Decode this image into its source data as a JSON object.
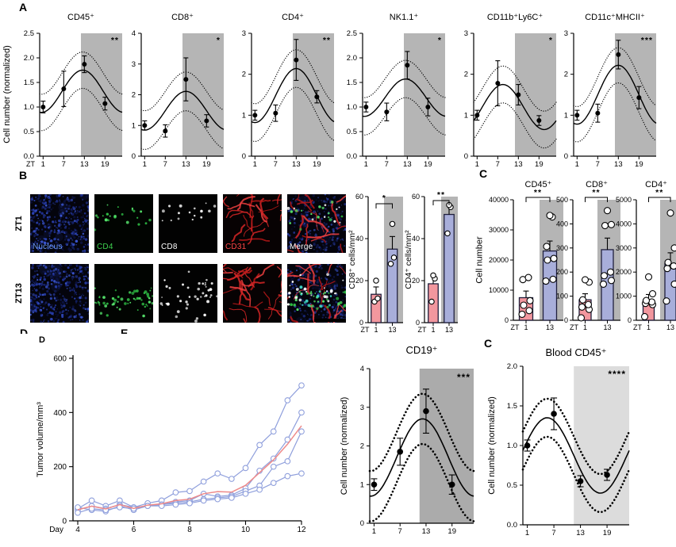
{
  "colors": {
    "bar_pink": "#f2979e",
    "bar_blue": "#a8aeda",
    "bar_border": "#20203d",
    "shade": "#b5b5b5",
    "growth_blue": "#8f9fdc",
    "growth_red": "#ee8a8a",
    "point_fill": "#ffffff",
    "axis": "#000000"
  },
  "labels": {
    "panel_a": "A",
    "panel_b": "B",
    "panel_c": "C",
    "panel_c2": "C",
    "panel_d_small": "D",
    "clipped_d": "D",
    "clipped_e": "E"
  },
  "panel_a": {
    "ylabel": "Cell number (normalized)",
    "x_prefix": "ZT"
  },
  "panel_b": {
    "row_labels": [
      "ZT1",
      "ZT13"
    ],
    "channels": [
      {
        "label": "Nucleus",
        "color": "#6f9fff",
        "kind": "nucleus",
        "counts": [
          420,
          420
        ]
      },
      {
        "label": "CD4",
        "color": "#3ed24f",
        "kind": "cd4",
        "counts": [
          22,
          60
        ]
      },
      {
        "label": "CD8",
        "color": "#ffffff",
        "kind": "cd8",
        "counts": [
          16,
          42
        ]
      },
      {
        "label": "CD31",
        "color": "#ff4747",
        "kind": "cd31",
        "counts": [
          26,
          30
        ]
      },
      {
        "label": "Merge",
        "color": "#ffffff",
        "kind": "merge",
        "counts": [
          1,
          1
        ]
      }
    ]
  },
  "panel_c": {
    "ylabel": "Cell number",
    "x_prefix": "ZT"
  },
  "chart_data": [
    {
      "id": "a-cd45",
      "panel": "A",
      "type": "line",
      "subtype": "cosinor-fit",
      "title": "CD45⁺",
      "sig": "**",
      "xlim": [
        0,
        24
      ],
      "xticks": [
        1,
        7,
        13,
        19
      ],
      "ylim": [
        0,
        2.5
      ],
      "yticks": [
        0,
        0.5,
        1,
        1.5,
        2,
        2.5
      ],
      "ytick_labels": [
        "0.0",
        "0.5",
        "1.0",
        "1.5",
        "2.0",
        "2.5"
      ],
      "shade": [
        12,
        24
      ],
      "shade_color": "#b5b5b5",
      "x": [
        1,
        7,
        13,
        19
      ],
      "y": [
        1.0,
        1.37,
        1.87,
        1.07
      ],
      "err": [
        0.12,
        0.36,
        0.17,
        0.13
      ],
      "fit": {
        "mesor": 1.32,
        "amp": 0.43,
        "peak": 12.5,
        "band": 0.37
      }
    },
    {
      "id": "a-cd8",
      "panel": "A",
      "type": "line",
      "subtype": "cosinor-fit",
      "title": "CD8⁺",
      "sig": "*",
      "xlim": [
        0,
        24
      ],
      "xticks": [
        1,
        7,
        13,
        19
      ],
      "ylim": [
        0,
        4
      ],
      "yticks": [
        0,
        1,
        2,
        3,
        4
      ],
      "ytick_labels": [
        "0",
        "1",
        "2",
        "3",
        "4"
      ],
      "shade": [
        12,
        24
      ],
      "shade_color": "#b5b5b5",
      "x": [
        1,
        7,
        13,
        19
      ],
      "y": [
        1.0,
        0.82,
        2.5,
        1.15
      ],
      "err": [
        0.15,
        0.2,
        0.7,
        0.2
      ],
      "fit": {
        "mesor": 1.48,
        "amp": 0.63,
        "peak": 13,
        "band": 0.63
      }
    },
    {
      "id": "a-cd4",
      "panel": "A",
      "type": "line",
      "subtype": "cosinor-fit",
      "title": "CD4⁺",
      "sig": "**",
      "xlim": [
        0,
        24
      ],
      "xticks": [
        1,
        7,
        13,
        19
      ],
      "ylim": [
        0,
        3
      ],
      "yticks": [
        0,
        1,
        2,
        3
      ],
      "ytick_labels": [
        "0",
        "1",
        "2",
        "3"
      ],
      "shade": [
        12,
        24
      ],
      "shade_color": "#b5b5b5",
      "x": [
        1,
        7,
        13,
        19
      ],
      "y": [
        1.0,
        1.05,
        2.35,
        1.45
      ],
      "err": [
        0.12,
        0.2,
        0.5,
        0.15
      ],
      "fit": {
        "mesor": 1.48,
        "amp": 0.66,
        "peak": 13,
        "band": 0.46
      }
    },
    {
      "id": "a-nk11",
      "panel": "A",
      "type": "line",
      "subtype": "cosinor-fit",
      "title": "NK1.1⁺",
      "sig": "*",
      "xlim": [
        0,
        24
      ],
      "xticks": [
        1,
        7,
        13,
        19
      ],
      "ylim": [
        0,
        2.5
      ],
      "yticks": [
        0,
        0.5,
        1,
        1.5,
        2,
        2.5
      ],
      "ytick_labels": [
        "0.0",
        "0.5",
        "1.0",
        "1.5",
        "2.0",
        "2.5"
      ],
      "shade": [
        12,
        24
      ],
      "shade_color": "#b5b5b5",
      "x": [
        1,
        7,
        13,
        19
      ],
      "y": [
        1.0,
        0.9,
        1.85,
        1.0
      ],
      "err": [
        0.1,
        0.18,
        0.28,
        0.18
      ],
      "fit": {
        "mesor": 1.19,
        "amp": 0.38,
        "peak": 12.5,
        "band": 0.38
      }
    },
    {
      "id": "a-cd11b",
      "panel": "A",
      "type": "line",
      "subtype": "cosinor-fit",
      "title": "CD11b⁺Ly6C⁺",
      "sig": "*",
      "xlim": [
        0,
        24
      ],
      "xticks": [
        1,
        7,
        13,
        19
      ],
      "ylim": [
        0,
        3
      ],
      "yticks": [
        0,
        1,
        2,
        3
      ],
      "ytick_labels": [
        "0",
        "1",
        "2",
        "3"
      ],
      "shade": [
        12,
        24
      ],
      "shade_color": "#b5b5b5",
      "x": [
        1,
        7,
        13,
        19
      ],
      "y": [
        1.0,
        1.78,
        1.5,
        0.87
      ],
      "err": [
        0.12,
        0.55,
        0.25,
        0.12
      ],
      "fit": {
        "mesor": 1.2,
        "amp": 0.55,
        "peak": 8.5,
        "band": 0.45
      }
    },
    {
      "id": "a-cd11c",
      "panel": "A",
      "type": "line",
      "subtype": "cosinor-fit",
      "title": "CD11c⁺MHCII⁺",
      "sig": "***",
      "xlim": [
        0,
        24
      ],
      "xticks": [
        1,
        7,
        13,
        19
      ],
      "ylim": [
        0,
        3
      ],
      "yticks": [
        0,
        1,
        2,
        3
      ],
      "ytick_labels": [
        "0",
        "1",
        "2",
        "3"
      ],
      "shade": [
        12,
        24
      ],
      "shade_color": "#b5b5b5",
      "x": [
        1,
        7,
        13,
        19
      ],
      "y": [
        1.0,
        1.05,
        2.48,
        1.43
      ],
      "err": [
        0.12,
        0.22,
        0.35,
        0.27
      ],
      "fit": {
        "mesor": 1.5,
        "amp": 0.72,
        "peak": 13,
        "band": 0.43
      }
    },
    {
      "id": "b-cd8",
      "panel": "B",
      "type": "bar",
      "ylabel": "CD8⁺ cells/mm²",
      "sig": "*",
      "x_prefix": "ZT",
      "categories": [
        "1",
        "13"
      ],
      "ylim": [
        0,
        60
      ],
      "yticks": [
        0,
        20,
        40,
        60
      ],
      "ytick_labels": [
        "0",
        "20",
        "40",
        "60"
      ],
      "values": [
        13.5,
        35
      ],
      "errors": [
        3.5,
        6
      ],
      "points": [
        [
          10,
          11.5,
          20
        ],
        [
          28,
          31,
          47
        ]
      ],
      "shade_color": "#b5b5b5"
    },
    {
      "id": "b-cd4",
      "panel": "B",
      "type": "bar",
      "ylabel": "CD4⁺ cells/mm²",
      "sig": "**",
      "x_prefix": "ZT",
      "categories": [
        "1",
        "13"
      ],
      "ylim": [
        0,
        60
      ],
      "yticks": [
        0,
        20,
        40,
        60
      ],
      "ytick_labels": [
        "0",
        "20",
        "40",
        "60"
      ],
      "values": [
        18.5,
        51.5
      ],
      "errors": [
        4.5,
        4.5
      ],
      "points": [
        [
          10,
          21,
          22.5
        ],
        [
          42.5,
          55,
          56
        ]
      ],
      "shade_color": "#b5b5b5"
    },
    {
      "id": "c-cd45",
      "panel": "C",
      "type": "bar",
      "title": "CD45⁺",
      "sig": "**",
      "x_prefix": "ZT",
      "categories": [
        "1",
        "13"
      ],
      "ylim": [
        0,
        40000
      ],
      "yticks": [
        0,
        10000,
        20000,
        30000,
        40000
      ],
      "ytick_labels": [
        "0",
        "10000",
        "20000",
        "30000",
        "40000"
      ],
      "values": [
        7500,
        23000
      ],
      "errors": [
        2200,
        3300
      ],
      "points": [
        [
          2000,
          3200,
          5000,
          6500,
          13500,
          14200
        ],
        [
          13000,
          13600,
          20000,
          20500,
          24500,
          34300,
          34800
        ]
      ],
      "shade_color": "#b5b5b5"
    },
    {
      "id": "c-cd8",
      "panel": "C",
      "type": "bar",
      "title": "CD8⁺",
      "sig": "**",
      "x_prefix": "ZT",
      "categories": [
        "1",
        "13"
      ],
      "ylim": [
        0,
        500
      ],
      "yticks": [
        0,
        100,
        200,
        300,
        400,
        500
      ],
      "ytick_labels": [
        "0",
        "100",
        "200",
        "300",
        "400",
        "500"
      ],
      "values": [
        85,
        293
      ],
      "errors": [
        25,
        48
      ],
      "points": [
        [
          10,
          45,
          55,
          65,
          85,
          158,
          168
        ],
        [
          150,
          165,
          185,
          200,
          393,
          397,
          455
        ]
      ],
      "shade_color": "#b5b5b5"
    },
    {
      "id": "c-cd4",
      "panel": "C",
      "type": "bar",
      "title": "CD4⁺",
      "sig": "**",
      "x_prefix": "ZT",
      "categories": [
        "1",
        "13"
      ],
      "ylim": [
        0,
        5000
      ],
      "yticks": [
        0,
        1000,
        2000,
        3000,
        4000,
        5000
      ],
      "ytick_labels": [
        "0",
        "1000",
        "2000",
        "3000",
        "4000",
        "5000"
      ],
      "values": [
        820,
        2350
      ],
      "errors": [
        250,
        450
      ],
      "points": [
        [
          150,
          650,
          700,
          760,
          820,
          1100,
          1800
        ],
        [
          800,
          1500,
          2150,
          2250,
          2400,
          3000,
          4450
        ]
      ],
      "shade_color": "#b5b5b5"
    },
    {
      "id": "d-growth",
      "panel": "D",
      "type": "line",
      "subtype": "growth",
      "ylabel": "Tumor volume/mm³",
      "x_prefix": "Day",
      "xlim": [
        4,
        12
      ],
      "xticks": [
        4,
        6,
        8,
        10,
        12
      ],
      "ylim": [
        0,
        600
      ],
      "yticks": [
        0,
        200,
        400,
        600
      ],
      "ytick_labels": [
        "0",
        "200",
        "400",
        "600"
      ],
      "x": [
        4,
        4.5,
        5,
        5.5,
        6,
        6.5,
        7,
        7.5,
        8,
        8.5,
        9,
        9.5,
        10,
        10.5,
        11,
        11.5,
        12
      ],
      "series": [
        {
          "name": "tumor-1",
          "values": [
            45,
            75,
            55,
            75,
            50,
            65,
            75,
            105,
            110,
            145,
            175,
            155,
            195,
            280,
            330,
            445,
            500
          ]
        },
        {
          "name": "tumor-2",
          "values": [
            40,
            55,
            45,
            60,
            50,
            55,
            60,
            70,
            75,
            100,
            90,
            95,
            120,
            185,
            230,
            300,
            400
          ]
        },
        {
          "name": "tumor-3",
          "values": [
            50,
            40,
            35,
            55,
            40,
            55,
            60,
            65,
            70,
            80,
            85,
            90,
            110,
            130,
            200,
            220,
            330
          ]
        },
        {
          "name": "tumor-4",
          "values": [
            30,
            45,
            40,
            50,
            45,
            55,
            55,
            60,
            65,
            75,
            80,
            85,
            100,
            115,
            140,
            165,
            175
          ]
        },
        {
          "name": "mean",
          "color_key": "growth_red",
          "values": [
            41,
            54,
            44,
            60,
            46,
            58,
            63,
            75,
            80,
            100,
            108,
            106,
            131,
            178,
            225,
            283,
            351
          ]
        }
      ]
    },
    {
      "id": "e-cd19",
      "panel": "E",
      "type": "line",
      "subtype": "cosinor-fit",
      "title": "CD19⁺",
      "sig": "***",
      "ylabel": "Cell number (normalized)",
      "xlim": [
        0,
        24
      ],
      "xticks": [
        1,
        7,
        13,
        19
      ],
      "ylim": [
        0,
        4
      ],
      "yticks": [
        0,
        1,
        2,
        3,
        4
      ],
      "ytick_labels": [
        "0",
        "1",
        "2",
        "3",
        "4"
      ],
      "shade": [
        11.5,
        24
      ],
      "shade_color": "#ababab",
      "x": [
        1,
        7,
        13,
        19
      ],
      "y": [
        1.0,
        1.85,
        2.9,
        1.0
      ],
      "err": [
        0.15,
        0.35,
        0.57,
        0.25
      ],
      "fit": {
        "mesor": 1.7,
        "amp": 1.0,
        "peak": 12.2,
        "band": 0.65
      }
    },
    {
      "id": "f-blood",
      "panel": "C",
      "type": "line",
      "subtype": "cosinor-fit",
      "title": "Blood CD45⁺",
      "sig": "****",
      "ylabel": "Cell number (normalized)",
      "xlim": [
        0,
        24
      ],
      "xticks": [
        1,
        7,
        13,
        19
      ],
      "ylim": [
        0,
        2
      ],
      "yticks": [
        0,
        0.5,
        1,
        1.5,
        2
      ],
      "ytick_labels": [
        "0.0",
        "0.5",
        "1.0",
        "1.5",
        "2.0"
      ],
      "shade": [
        11.5,
        24
      ],
      "shade_color": "#dcdcdc",
      "x": [
        1,
        7,
        13,
        19
      ],
      "y": [
        1.0,
        1.4,
        0.55,
        0.63
      ],
      "err": [
        0.07,
        0.2,
        0.07,
        0.07
      ],
      "fit": {
        "mesor": 0.875,
        "amp": 0.475,
        "peak": 5.5,
        "band": 0.24
      }
    }
  ]
}
